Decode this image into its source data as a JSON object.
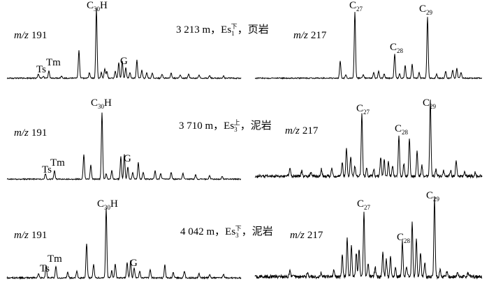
{
  "panels": [
    {
      "left": {
        "ion": {
          "prefix": "m/z",
          "value": "191"
        },
        "peaks": {
          "ts": "Ts",
          "tm": "Tm",
          "hopane": {
            "base": "C",
            "sub": "30",
            "suffix": "H"
          },
          "g": "G"
        }
      },
      "sample": {
        "depth": "3 213 m，Es",
        "sub": "1",
        "sup": "下",
        "lithology": "，页岩"
      },
      "right": {
        "ion": {
          "prefix": "m/z",
          "value": "217"
        },
        "peaks": {
          "c27": {
            "base": "C",
            "sub": "27"
          },
          "c28": {
            "base": "C",
            "sub": "28"
          },
          "c29": {
            "base": "C",
            "sub": "29"
          }
        }
      }
    },
    {
      "left": {
        "ion": {
          "prefix": "m/z",
          "value": "191"
        },
        "peaks": {
          "ts": "Ts",
          "tm": "Tm",
          "hopane": {
            "base": "C",
            "sub": "30",
            "suffix": "H"
          },
          "g": "G"
        }
      },
      "sample": {
        "depth": "3 710 m，Es",
        "sub": "3",
        "sup": "上",
        "lithology": "，泥岩"
      },
      "right": {
        "ion": {
          "prefix": "m/z",
          "value": "217"
        },
        "peaks": {
          "c27": {
            "base": "C",
            "sub": "27"
          },
          "c28": {
            "base": "C",
            "sub": "28"
          },
          "c29": {
            "base": "C",
            "sub": "29"
          }
        }
      }
    },
    {
      "left": {
        "ion": {
          "prefix": "m/z",
          "value": "191"
        },
        "peaks": {
          "ts": "Ts",
          "tm": "Tm",
          "hopane": {
            "base": "C",
            "sub": "30",
            "suffix": "H"
          },
          "g": "G"
        }
      },
      "sample": {
        "depth": "4 042 m，Es",
        "sub": "3",
        "sup": "下",
        "lithology": "，泥岩"
      },
      "right": {
        "ion": {
          "prefix": "m/z",
          "value": "217"
        },
        "peaks": {
          "c27": {
            "base": "C",
            "sub": "27"
          },
          "c28": {
            "base": "C",
            "sub": "28"
          },
          "c29": {
            "base": "C",
            "sub": "29"
          }
        }
      }
    }
  ]
}
